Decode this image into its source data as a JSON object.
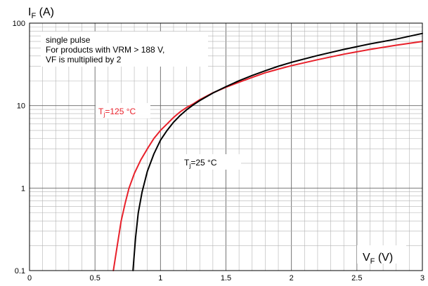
{
  "chart_data": {
    "type": "line",
    "x_scale": "linear",
    "y_scale": "log",
    "xlim": [
      0,
      3
    ],
    "ylim": [
      0.1,
      100
    ],
    "grid": true,
    "x_ticks": [
      0,
      0.5,
      1,
      1.5,
      2,
      2.5,
      3
    ],
    "x_tick_labels": [
      "0",
      "0.5",
      "1",
      "1.5",
      "2",
      "2.5",
      "3"
    ],
    "y_ticks": [
      0.1,
      1,
      10,
      100
    ],
    "y_tick_labels": [
      "0.1",
      "1",
      "10",
      "100"
    ],
    "y_axis_title": {
      "main": "I",
      "sub": "F",
      "unit": " (A)"
    },
    "x_axis_title": {
      "main": "V",
      "sub": "F",
      "unit": " (V)"
    },
    "annotation": [
      "single pulse",
      "For products with VRM > 188 V,",
      "VF is multiplied by 2"
    ],
    "series": [
      {
        "label_main": "T",
        "label_sub": "j",
        "label_rest": "=125 °C",
        "color": "#e8202a",
        "x": [
          0.64,
          0.67,
          0.7,
          0.73,
          0.76,
          0.8,
          0.85,
          0.9,
          0.95,
          1.0,
          1.05,
          1.1,
          1.15,
          1.2,
          1.25,
          1.3,
          1.4,
          1.5,
          1.6,
          1.7,
          1.8,
          1.9,
          2.0,
          2.2,
          2.4,
          2.6,
          2.8,
          3.0
        ],
        "y": [
          0.1,
          0.2,
          0.4,
          0.65,
          1.0,
          1.5,
          2.2,
          3.0,
          4.0,
          5.0,
          6.0,
          7.2,
          8.4,
          9.5,
          10.5,
          11.8,
          14.3,
          16.7,
          19.2,
          22,
          25,
          27.7,
          30.5,
          36,
          42,
          48,
          54,
          60
        ]
      },
      {
        "label_main": "T",
        "label_sub": "j",
        "label_rest": "=25 °C",
        "color": "#000000",
        "x": [
          0.79,
          0.81,
          0.83,
          0.86,
          0.9,
          0.95,
          1.0,
          1.05,
          1.1,
          1.15,
          1.2,
          1.25,
          1.3,
          1.4,
          1.5,
          1.6,
          1.7,
          1.8,
          1.9,
          2.0,
          2.2,
          2.4,
          2.6,
          2.8,
          3.0
        ],
        "y": [
          0.1,
          0.25,
          0.5,
          0.9,
          1.6,
          2.6,
          3.8,
          5.0,
          6.3,
          7.6,
          8.9,
          10.2,
          11.5,
          14.2,
          17.0,
          20.0,
          23.2,
          26.5,
          30.0,
          33.5,
          40.5,
          48,
          56,
          64,
          75
        ]
      }
    ]
  }
}
